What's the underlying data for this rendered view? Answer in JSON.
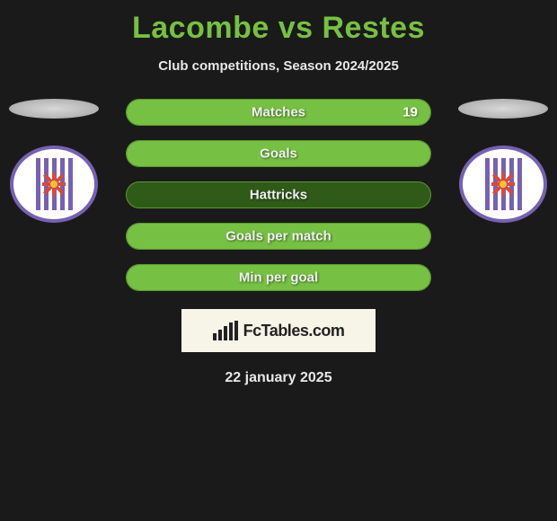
{
  "title": "Lacombe vs Restes",
  "subtitle": "Club competitions, Season 2024/2025",
  "date": "22 january 2025",
  "brand": "FcTables.com",
  "colors": {
    "accent": "#76c043",
    "bar_border": "#5a9a2e",
    "bar_bg_empty": "#2f5a18",
    "page_bg": "#1a1a1a",
    "brand_box_bg": "#f7f4e8",
    "club_primary": "#7661b3"
  },
  "stats": [
    {
      "label": "Matches",
      "right_value": "19",
      "fill_right_pct": 100
    },
    {
      "label": "Goals",
      "right_value": "",
      "fill_right_pct": 100
    },
    {
      "label": "Hattricks",
      "right_value": "",
      "fill_right_pct": 0
    },
    {
      "label": "Goals per match",
      "right_value": "",
      "fill_right_pct": 100
    },
    {
      "label": "Min per goal",
      "right_value": "",
      "fill_right_pct": 100
    }
  ]
}
